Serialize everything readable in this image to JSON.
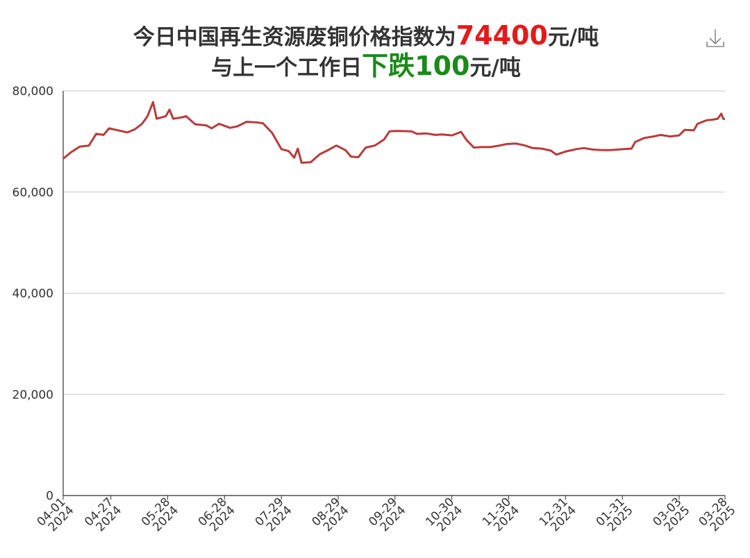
{
  "chart_data": {
    "type": "line",
    "title": [
      {
        "parts": [
          {
            "text": "今日中国再生资源废铜价格指数为"
          },
          {
            "text": "74400",
            "color": "#e41a1a"
          },
          {
            "text": "元/吨"
          }
        ]
      },
      {
        "parts": [
          {
            "text": "与上一个工作日"
          },
          {
            "text": "下跌",
            "color": "#1a8a1a"
          },
          {
            "text": "100",
            "color": "#1a8a1a"
          },
          {
            "text": "元/吨"
          }
        ]
      }
    ],
    "x": [
      "2024-04-01",
      "2024-04-05",
      "2024-04-10",
      "2024-04-15",
      "2024-04-19",
      "2024-04-23",
      "2024-04-26",
      "2024-05-01",
      "2024-05-06",
      "2024-05-10",
      "2024-05-14",
      "2024-05-17",
      "2024-05-20",
      "2024-05-22",
      "2024-05-27",
      "2024-05-29",
      "2024-05-31",
      "2024-06-05",
      "2024-06-07",
      "2024-06-12",
      "2024-06-18",
      "2024-06-21",
      "2024-06-25",
      "2024-07-01",
      "2024-07-05",
      "2024-07-10",
      "2024-07-15",
      "2024-07-19",
      "2024-07-24",
      "2024-07-29",
      "2024-08-02",
      "2024-08-05",
      "2024-08-07",
      "2024-08-09",
      "2024-08-14",
      "2024-08-19",
      "2024-08-23",
      "2024-08-28",
      "2024-09-02",
      "2024-09-05",
      "2024-09-09",
      "2024-09-13",
      "2024-09-18",
      "2024-09-23",
      "2024-09-26",
      "2024-09-30",
      "2024-10-08",
      "2024-10-11",
      "2024-10-16",
      "2024-10-21",
      "2024-10-25",
      "2024-10-30",
      "2024-11-04",
      "2024-11-07",
      "2024-11-11",
      "2024-11-15",
      "2024-11-20",
      "2024-11-25",
      "2024-11-29",
      "2024-12-04",
      "2024-12-09",
      "2024-12-13",
      "2024-12-18",
      "2024-12-23",
      "2024-12-26",
      "2024-12-31",
      "2025-01-06",
      "2025-01-10",
      "2025-01-15",
      "2025-01-20",
      "2025-01-24",
      "2025-02-05",
      "2025-02-07",
      "2025-02-12",
      "2025-02-17",
      "2025-02-21",
      "2025-02-26",
      "2025-03-03",
      "2025-03-06",
      "2025-03-11",
      "2025-03-13",
      "2025-03-18",
      "2025-03-21",
      "2025-03-24",
      "2025-03-26",
      "2025-03-27",
      "2025-03-28"
    ],
    "series": [
      {
        "color": "#b83a3a",
        "values": [
          66600,
          67800,
          69000,
          69200,
          71500,
          71300,
          72600,
          72200,
          71800,
          72400,
          73500,
          75000,
          77800,
          74500,
          75000,
          76300,
          74500,
          74800,
          75000,
          73400,
          73200,
          72600,
          73500,
          72700,
          73000,
          73900,
          73800,
          73600,
          71700,
          68500,
          68100,
          66800,
          68600,
          65800,
          65900,
          67500,
          68200,
          69200,
          68300,
          67000,
          66900,
          68800,
          69200,
          70400,
          72000,
          72100,
          72000,
          71500,
          71600,
          71300,
          71400,
          71200,
          71900,
          70300,
          68800,
          68900,
          68900,
          69200,
          69500,
          69600,
          69200,
          68700,
          68600,
          68200,
          67400,
          68000,
          68500,
          68700,
          68400,
          68300,
          68300,
          68600,
          69900,
          70700,
          71000,
          71300,
          71000,
          71200,
          72300,
          72200,
          73500,
          74200,
          74300,
          74500,
          75500,
          74500,
          74400
        ]
      }
    ],
    "xlim": [
      "2024-04-01",
      "2025-03-28"
    ],
    "xticks": [
      {
        "value": "2024-04-01",
        "label": [
          "04-01",
          "2024"
        ]
      },
      {
        "value": "2024-04-27",
        "label": [
          "04-27",
          "2024"
        ]
      },
      {
        "value": "2024-05-28",
        "label": [
          "05-28",
          "2024"
        ]
      },
      {
        "value": "2024-06-28",
        "label": [
          "06-28",
          "2024"
        ]
      },
      {
        "value": "2024-07-29",
        "label": [
          "07-29",
          "2024"
        ]
      },
      {
        "value": "2024-08-29",
        "label": [
          "08-29",
          "2024"
        ]
      },
      {
        "value": "2024-09-29",
        "label": [
          "09-29",
          "2024"
        ]
      },
      {
        "value": "2024-10-30",
        "label": [
          "10-30",
          "2024"
        ]
      },
      {
        "value": "2024-11-30",
        "label": [
          "11-30",
          "2024"
        ]
      },
      {
        "value": "2024-12-31",
        "label": [
          "12-31",
          "2024"
        ]
      },
      {
        "value": "2025-01-31",
        "label": [
          "01-31",
          "2025"
        ]
      },
      {
        "value": "2025-03-03",
        "label": [
          "03-03",
          "2025"
        ]
      },
      {
        "value": "2025-03-28",
        "label": [
          "03-28",
          "2025"
        ]
      }
    ],
    "ylim": [
      0,
      80000
    ],
    "yticks": [
      0,
      {
        "value": 20000,
        "label": "20,000"
      },
      {
        "value": 40000,
        "label": "40,000"
      },
      {
        "value": 60000,
        "label": "60,000"
      },
      {
        "value": 80000,
        "label": "80,000"
      }
    ],
    "grid": true
  }
}
